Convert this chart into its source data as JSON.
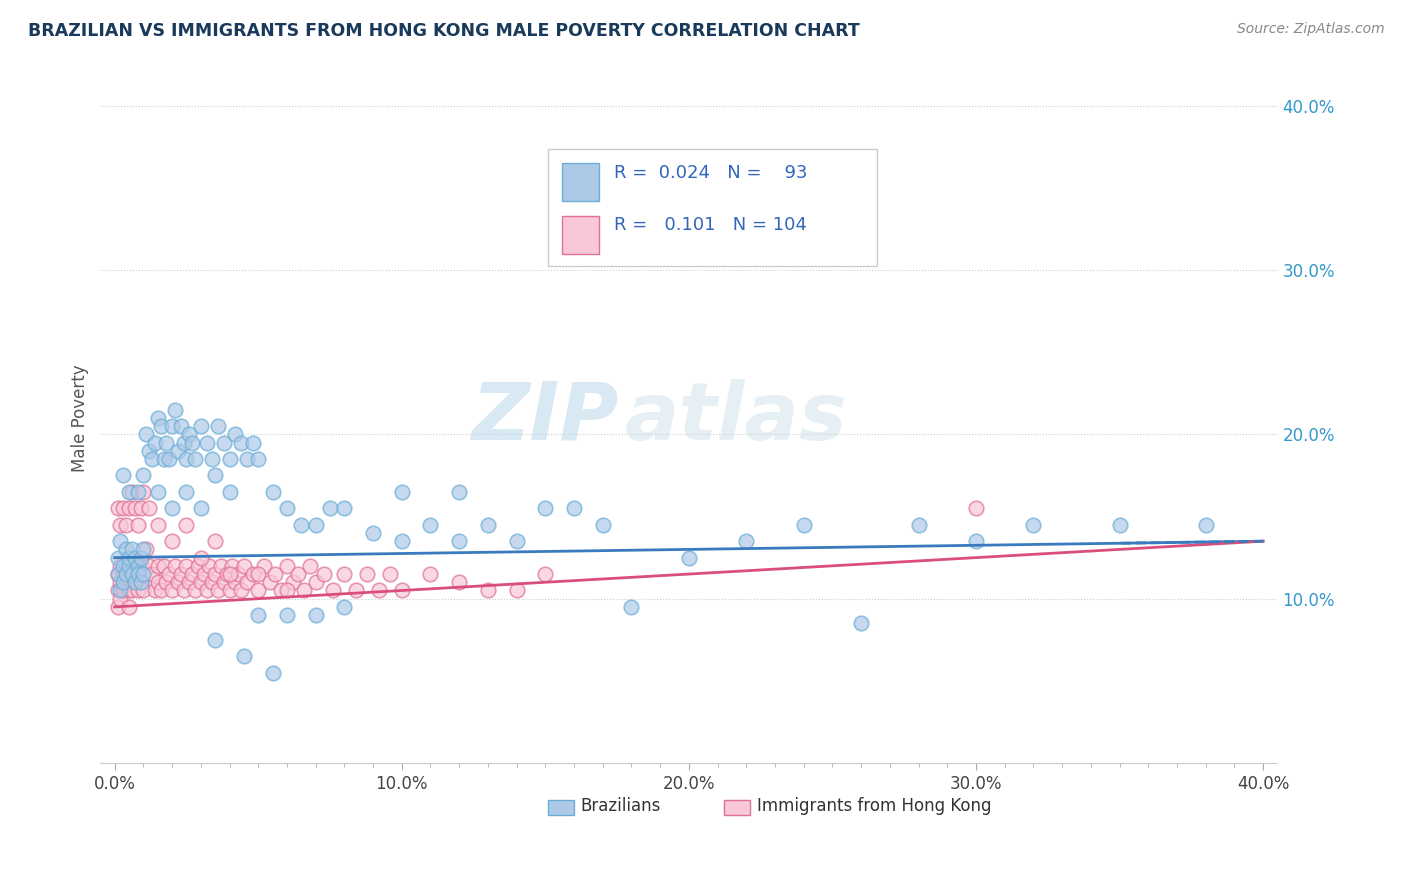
{
  "title": "BRAZILIAN VS IMMIGRANTS FROM HONG KONG MALE POVERTY CORRELATION CHART",
  "source_text": "Source: ZipAtlas.com",
  "ylabel": "Male Poverty",
  "xlim": [
    -0.005,
    0.405
  ],
  "ylim": [
    0.0,
    0.42
  ],
  "xtick_labels": [
    "0.0%",
    "",
    "",
    "",
    "",
    "",
    "",
    "",
    "",
    "",
    "10.0%",
    "",
    "",
    "",
    "",
    "",
    "",
    "",
    "",
    "",
    "20.0%",
    "",
    "",
    "",
    "",
    "",
    "",
    "",
    "",
    "",
    "30.0%",
    "",
    "",
    "",
    "",
    "",
    "",
    "",
    "",
    "",
    "40.0%"
  ],
  "xtick_vals": [
    0.0,
    0.01,
    0.02,
    0.03,
    0.04,
    0.05,
    0.06,
    0.07,
    0.08,
    0.09,
    0.1,
    0.11,
    0.12,
    0.13,
    0.14,
    0.15,
    0.16,
    0.17,
    0.18,
    0.19,
    0.2,
    0.21,
    0.22,
    0.23,
    0.24,
    0.25,
    0.26,
    0.27,
    0.28,
    0.29,
    0.3,
    0.31,
    0.32,
    0.33,
    0.34,
    0.35,
    0.36,
    0.37,
    0.38,
    0.39,
    0.4
  ],
  "ytick_labels_right": [
    "10.0%",
    "20.0%",
    "30.0%",
    "40.0%"
  ],
  "ytick_vals_right": [
    0.1,
    0.2,
    0.3,
    0.4
  ],
  "blue_color": "#aec9e8",
  "blue_edge_color": "#6baed6",
  "pink_color": "#f9c8d8",
  "pink_edge_color": "#e07095",
  "blue_line_color": "#3a7bbf",
  "pink_line_color": "#d94f7a",
  "legend_R1": "0.024",
  "legend_N1": "93",
  "legend_R2": "0.101",
  "legend_N2": "104",
  "series1_label": "Brazilians",
  "series2_label": "Immigrants from Hong Kong",
  "watermark_zip": "ZIP",
  "watermark_atlas": "atlas",
  "title_color": "#1a3a5c",
  "source_color": "#888888",
  "legend_text_color": "#3366bb",
  "label_color": "#3399cc",
  "grid_color": "#cccccc",
  "blue_scatter_x": [
    0.001,
    0.001,
    0.002,
    0.002,
    0.003,
    0.003,
    0.004,
    0.004,
    0.005,
    0.005,
    0.006,
    0.006,
    0.007,
    0.007,
    0.008,
    0.008,
    0.009,
    0.009,
    0.01,
    0.01,
    0.011,
    0.012,
    0.013,
    0.014,
    0.015,
    0.016,
    0.017,
    0.018,
    0.019,
    0.02,
    0.021,
    0.022,
    0.023,
    0.024,
    0.025,
    0.026,
    0.027,
    0.028,
    0.03,
    0.032,
    0.034,
    0.036,
    0.038,
    0.04,
    0.042,
    0.044,
    0.046,
    0.048,
    0.05,
    0.055,
    0.06,
    0.065,
    0.07,
    0.075,
    0.08,
    0.09,
    0.1,
    0.11,
    0.12,
    0.13,
    0.14,
    0.15,
    0.16,
    0.17,
    0.18,
    0.2,
    0.22,
    0.24,
    0.26,
    0.28,
    0.3,
    0.32,
    0.35,
    0.38,
    0.003,
    0.005,
    0.008,
    0.01,
    0.015,
    0.02,
    0.025,
    0.03,
    0.035,
    0.04,
    0.05,
    0.06,
    0.07,
    0.08,
    0.1,
    0.12,
    0.035,
    0.045,
    0.055
  ],
  "blue_scatter_y": [
    0.125,
    0.115,
    0.135,
    0.105,
    0.12,
    0.11,
    0.13,
    0.115,
    0.12,
    0.125,
    0.13,
    0.115,
    0.125,
    0.11,
    0.12,
    0.115,
    0.125,
    0.11,
    0.13,
    0.115,
    0.2,
    0.19,
    0.185,
    0.195,
    0.21,
    0.205,
    0.185,
    0.195,
    0.185,
    0.205,
    0.215,
    0.19,
    0.205,
    0.195,
    0.185,
    0.2,
    0.195,
    0.185,
    0.205,
    0.195,
    0.185,
    0.205,
    0.195,
    0.185,
    0.2,
    0.195,
    0.185,
    0.195,
    0.185,
    0.165,
    0.155,
    0.145,
    0.145,
    0.155,
    0.155,
    0.14,
    0.135,
    0.145,
    0.135,
    0.145,
    0.135,
    0.155,
    0.155,
    0.145,
    0.095,
    0.125,
    0.135,
    0.145,
    0.085,
    0.145,
    0.135,
    0.145,
    0.145,
    0.145,
    0.175,
    0.165,
    0.165,
    0.175,
    0.165,
    0.155,
    0.165,
    0.155,
    0.175,
    0.165,
    0.09,
    0.09,
    0.09,
    0.095,
    0.165,
    0.165,
    0.075,
    0.065,
    0.055
  ],
  "pink_scatter_x": [
    0.001,
    0.001,
    0.001,
    0.002,
    0.002,
    0.002,
    0.003,
    0.003,
    0.004,
    0.004,
    0.005,
    0.005,
    0.006,
    0.006,
    0.007,
    0.007,
    0.008,
    0.008,
    0.009,
    0.009,
    0.01,
    0.01,
    0.011,
    0.012,
    0.013,
    0.014,
    0.015,
    0.015,
    0.016,
    0.017,
    0.018,
    0.019,
    0.02,
    0.021,
    0.022,
    0.023,
    0.024,
    0.025,
    0.026,
    0.027,
    0.028,
    0.029,
    0.03,
    0.031,
    0.032,
    0.033,
    0.034,
    0.035,
    0.036,
    0.037,
    0.038,
    0.039,
    0.04,
    0.041,
    0.042,
    0.043,
    0.044,
    0.045,
    0.046,
    0.048,
    0.05,
    0.052,
    0.054,
    0.056,
    0.058,
    0.06,
    0.062,
    0.064,
    0.066,
    0.068,
    0.07,
    0.073,
    0.076,
    0.08,
    0.084,
    0.088,
    0.092,
    0.096,
    0.1,
    0.11,
    0.12,
    0.13,
    0.14,
    0.15,
    0.001,
    0.002,
    0.003,
    0.004,
    0.005,
    0.006,
    0.007,
    0.008,
    0.009,
    0.01,
    0.012,
    0.015,
    0.02,
    0.025,
    0.03,
    0.035,
    0.04,
    0.05,
    0.06,
    0.3
  ],
  "pink_scatter_y": [
    0.115,
    0.105,
    0.095,
    0.12,
    0.11,
    0.1,
    0.115,
    0.105,
    0.12,
    0.11,
    0.105,
    0.095,
    0.115,
    0.105,
    0.12,
    0.11,
    0.115,
    0.105,
    0.12,
    0.11,
    0.115,
    0.105,
    0.13,
    0.12,
    0.115,
    0.105,
    0.12,
    0.11,
    0.105,
    0.12,
    0.11,
    0.115,
    0.105,
    0.12,
    0.11,
    0.115,
    0.105,
    0.12,
    0.11,
    0.115,
    0.105,
    0.12,
    0.11,
    0.115,
    0.105,
    0.12,
    0.11,
    0.115,
    0.105,
    0.12,
    0.11,
    0.115,
    0.105,
    0.12,
    0.11,
    0.115,
    0.105,
    0.12,
    0.11,
    0.115,
    0.105,
    0.12,
    0.11,
    0.115,
    0.105,
    0.12,
    0.11,
    0.115,
    0.105,
    0.12,
    0.11,
    0.115,
    0.105,
    0.115,
    0.105,
    0.115,
    0.105,
    0.115,
    0.105,
    0.115,
    0.11,
    0.105,
    0.105,
    0.115,
    0.155,
    0.145,
    0.155,
    0.145,
    0.155,
    0.165,
    0.155,
    0.145,
    0.155,
    0.165,
    0.155,
    0.145,
    0.135,
    0.145,
    0.125,
    0.135,
    0.115,
    0.115,
    0.105,
    0.155
  ]
}
